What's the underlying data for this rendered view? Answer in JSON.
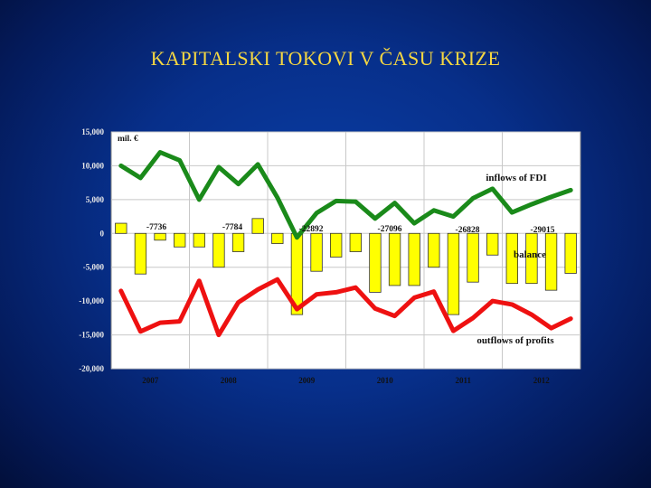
{
  "slide": {
    "title": "KAPITALSKI TOKOVI V ČASU KRIZE"
  },
  "chart_data": {
    "type": "bar+line",
    "unit_label": "mil. €",
    "ylim": [
      -20000,
      15000
    ],
    "yticks": [
      15000,
      10000,
      5000,
      0,
      -5000,
      -10000,
      -15000,
      -20000
    ],
    "ytick_labels": [
      "15,000",
      "10,000",
      "5,000",
      "0",
      "-5,000",
      "-10,000",
      "-15,000",
      "-20,000"
    ],
    "year_labels": [
      "2007",
      "2008",
      "2009",
      "2010",
      "2011",
      "2012"
    ],
    "grid": true,
    "series": [
      {
        "name": "balance",
        "kind": "bar",
        "color": "#ffff00",
        "values": [
          1500,
          -6000,
          -1000,
          -2000,
          -2000,
          -5000,
          -2700,
          2200,
          -1500,
          -12000,
          -5600,
          -3500,
          -2700,
          -8700,
          -7700,
          -7700,
          -5000,
          -12000,
          -7200,
          -3200,
          -7400,
          -7400,
          -8400,
          -5900
        ]
      },
      {
        "name": "inflows of FDI",
        "kind": "line",
        "color": "#1a8a1a",
        "values": [
          10000,
          8200,
          12000,
          10800,
          5000,
          9800,
          7300,
          10200,
          5300,
          -600,
          3000,
          4800,
          4700,
          2200,
          4500,
          1500,
          3400,
          2500,
          5200,
          6600,
          3100,
          4300,
          5400,
          6400
        ]
      },
      {
        "name": "outflows of profits",
        "kind": "line",
        "color": "#ee1111",
        "values": [
          -8500,
          -14500,
          -13200,
          -13000,
          -7000,
          -15000,
          -10200,
          -8300,
          -6800,
          -11200,
          -9000,
          -8700,
          -8000,
          -11100,
          -12200,
          -9500,
          -8600,
          -14400,
          -12500,
          -10000,
          -10500,
          -12000,
          -14000,
          -12600
        ]
      }
    ],
    "annotations": [
      "-7736",
      "-7784",
      "-22892",
      "-27096",
      "-26828",
      "-29015"
    ]
  }
}
